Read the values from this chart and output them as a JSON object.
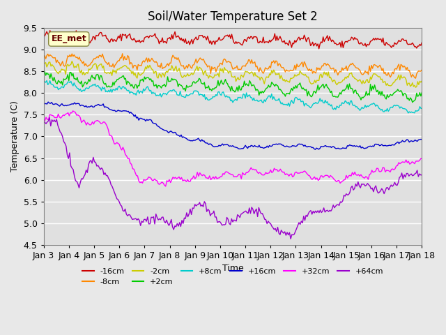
{
  "title": "Soil/Water Temperature Set 2",
  "xlabel": "Time",
  "ylabel": "Temperature (C)",
  "ylim": [
    4.5,
    9.5
  ],
  "xlim": [
    0,
    360
  ],
  "annotation": "EE_met",
  "background_color": "#e8e8e8",
  "plot_bg_color": "#e0e0e0",
  "grid_color": "white",
  "x_tick_labels": [
    "Jan 3",
    "Jan 4",
    "Jan 5",
    "Jan 6",
    "Jan 7",
    "Jan 8",
    "Jan 9",
    "Jan 10",
    "Jan 11",
    "Jan 12",
    "Jan 13",
    "Jan 14",
    "Jan 15",
    "Jan 16",
    "Jan 17",
    "Jan 18"
  ],
  "x_tick_positions": [
    0,
    24,
    48,
    72,
    96,
    120,
    144,
    168,
    192,
    216,
    240,
    264,
    288,
    312,
    336,
    360
  ],
  "series": [
    {
      "label": "-16cm",
      "color": "#cc0000"
    },
    {
      "label": "-8cm",
      "color": "#ff8800"
    },
    {
      "label": "-2cm",
      "color": "#cccc00"
    },
    {
      "label": "+2cm",
      "color": "#00cc00"
    },
    {
      "label": "+8cm",
      "color": "#00cccc"
    },
    {
      "label": "+16cm",
      "color": "#0000cc"
    },
    {
      "label": "+32cm",
      "color": "#ff00ff"
    },
    {
      "label": "+64cm",
      "color": "#9900cc"
    }
  ],
  "n_points": 361,
  "yticks": [
    4.5,
    5.0,
    5.5,
    6.0,
    6.5,
    7.0,
    7.5,
    8.0,
    8.5,
    9.0,
    9.5
  ]
}
